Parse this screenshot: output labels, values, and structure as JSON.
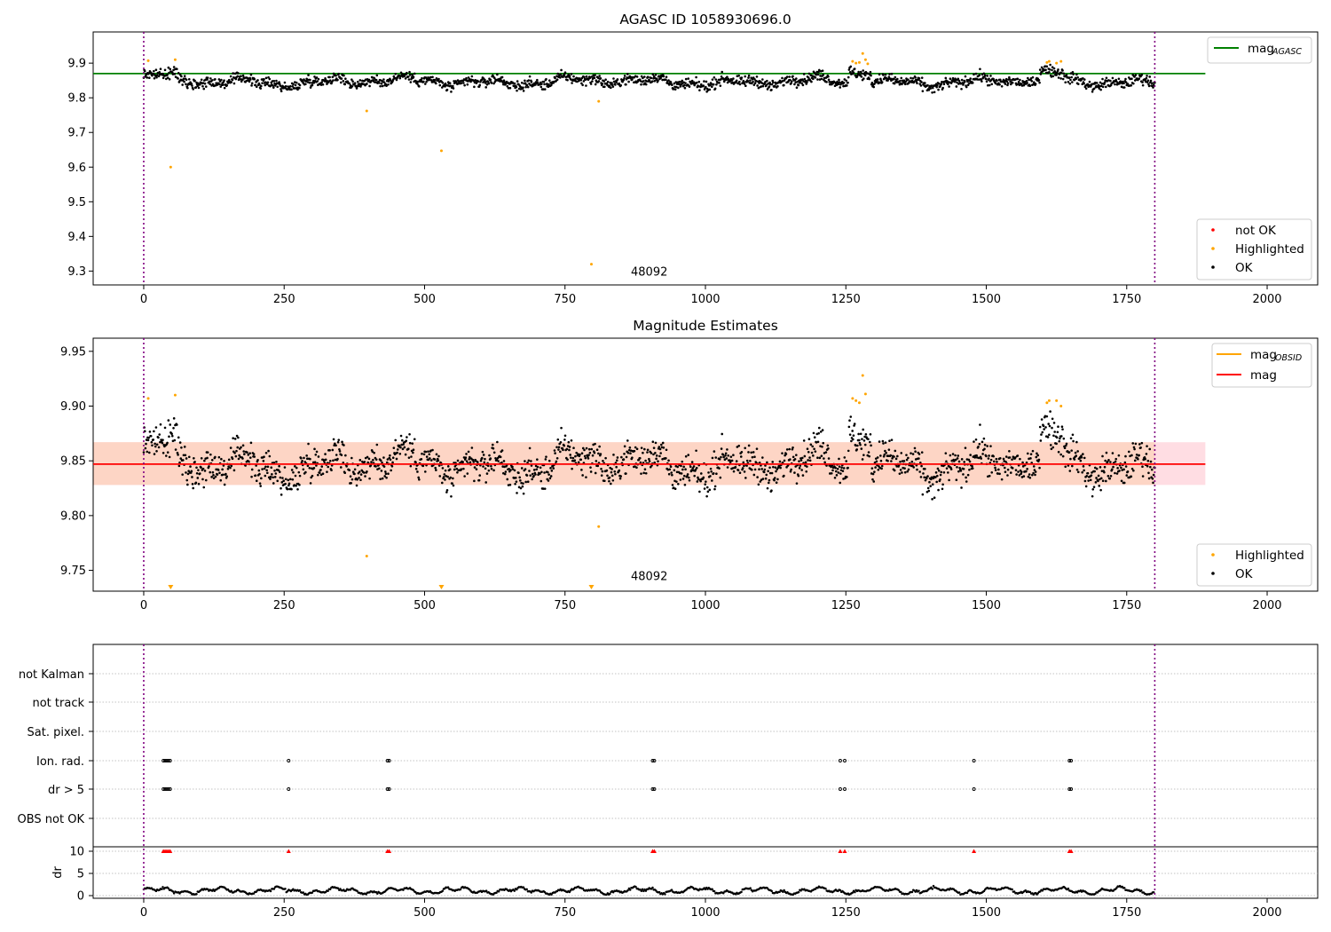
{
  "colors": {
    "ok": "#000000",
    "highlighted": "#ffa500",
    "not_ok": "#ff0000",
    "agasc_line": "#008000",
    "mag_line": "#ff0000",
    "obsid_line": "#ffa500",
    "band_outer": "#ffdde3",
    "band_inner": "#fdd5c5",
    "obs_boundary": "#800080",
    "grid": "#b0b0b0"
  },
  "chart_data": [
    {
      "type": "scatter",
      "title": "AGASC ID 1058930696.0",
      "xlim": [
        -90,
        2090
      ],
      "ylim": [
        9.26,
        9.99
      ],
      "xticks": [
        0,
        250,
        500,
        750,
        1000,
        1250,
        1500,
        1750,
        2000
      ],
      "yticks": [
        9.3,
        9.4,
        9.5,
        9.6,
        9.7,
        9.8,
        9.9
      ],
      "ytick_labels": [
        "9.3",
        "9.4",
        "9.5",
        "9.6",
        "9.7",
        "9.8",
        "9.9"
      ],
      "hlines": [
        {
          "name": "mag",
          "subscript": "AGASC",
          "y": 9.87,
          "x_range": [
            -90,
            1890
          ]
        }
      ],
      "obs_boundaries": [
        0,
        1800
      ],
      "annotations": [
        {
          "text": "48092",
          "x": 900,
          "y": 9.3
        }
      ],
      "legends": [
        {
          "location": "upper right",
          "entries": [
            {
              "label": "mag",
              "subscript": "AGASC",
              "kind": "line",
              "color": "#008000"
            }
          ]
        },
        {
          "location": "lower right",
          "entries": [
            {
              "label": "not OK",
              "kind": "marker",
              "color": "#ff0000"
            },
            {
              "label": "Highlighted",
              "kind": "marker",
              "color": "#ffa500"
            },
            {
              "label": "OK",
              "kind": "marker",
              "color": "#000000"
            }
          ]
        }
      ],
      "ok_series": {
        "name": "OK",
        "x_range": [
          0,
          1800
        ],
        "count": 1800,
        "baseline": 9.847,
        "spread": 0.018
      },
      "bumps": [
        {
          "x_range": [
            1255,
            1295
          ],
          "shift": 0.035
        },
        {
          "x_range": [
            1595,
            1640
          ],
          "shift": 0.025
        },
        {
          "x_range": [
            0,
            60
          ],
          "shift": 0.015
        }
      ],
      "highlighted_points": [
        {
          "x": 8,
          "y": 9.907
        },
        {
          "x": 48,
          "y": 9.6
        },
        {
          "x": 56,
          "y": 9.91
        },
        {
          "x": 397,
          "y": 9.762
        },
        {
          "x": 530,
          "y": 9.647
        },
        {
          "x": 797,
          "y": 9.32
        },
        {
          "x": 810,
          "y": 9.79
        },
        {
          "x": 1262,
          "y": 9.905
        },
        {
          "x": 1268,
          "y": 9.9
        },
        {
          "x": 1274,
          "y": 9.902
        },
        {
          "x": 1280,
          "y": 9.928
        },
        {
          "x": 1285,
          "y": 9.91
        },
        {
          "x": 1289,
          "y": 9.898
        },
        {
          "x": 1608,
          "y": 9.902
        },
        {
          "x": 1612,
          "y": 9.905
        },
        {
          "x": 1625,
          "y": 9.9
        },
        {
          "x": 1633,
          "y": 9.905
        }
      ]
    },
    {
      "type": "scatter",
      "title": "Magnitude Estimates",
      "xlim": [
        -90,
        2090
      ],
      "ylim": [
        9.731,
        9.962
      ],
      "xticks": [
        0,
        250,
        500,
        750,
        1000,
        1250,
        1500,
        1750,
        2000
      ],
      "yticks": [
        9.75,
        9.8,
        9.85,
        9.9,
        9.95
      ],
      "ytick_labels": [
        "9.75",
        "9.80",
        "9.85",
        "9.90",
        "9.95"
      ],
      "hlines": [
        {
          "name": "mag",
          "y": 9.847,
          "x_range": [
            -90,
            1890
          ]
        }
      ],
      "bands": [
        {
          "y_range": [
            9.828,
            9.867
          ],
          "x_range": [
            -90,
            1890
          ],
          "color": "#ffdde3"
        },
        {
          "y_range": [
            9.828,
            9.867
          ],
          "x_range": [
            -90,
            1800
          ],
          "color": "#fdd5c5"
        }
      ],
      "obs_boundaries": [
        0,
        1800
      ],
      "annotations": [
        {
          "text": "48092",
          "x": 900,
          "y": 9.745
        }
      ],
      "legends": [
        {
          "location": "upper right",
          "entries": [
            {
              "label": "mag",
              "subscript": "OBSID",
              "kind": "line",
              "color": "#ffa500"
            },
            {
              "label": "mag",
              "kind": "line",
              "color": "#ff0000"
            }
          ]
        },
        {
          "location": "lower right",
          "entries": [
            {
              "label": "Highlighted",
              "kind": "marker",
              "color": "#ffa500"
            },
            {
              "label": "OK",
              "kind": "marker",
              "color": "#000000"
            }
          ]
        }
      ],
      "ok_series": {
        "name": "OK",
        "x_range": [
          0,
          1800
        ],
        "count": 1800,
        "baseline": 9.847,
        "spread": 0.018
      },
      "highlighted_points": [
        {
          "x": 8,
          "y": 9.907
        },
        {
          "x": 56,
          "y": 9.91
        },
        {
          "x": 397,
          "y": 9.763
        },
        {
          "x": 810,
          "y": 9.79
        },
        {
          "x": 1262,
          "y": 9.907
        },
        {
          "x": 1268,
          "y": 9.905
        },
        {
          "x": 1274,
          "y": 9.903
        },
        {
          "x": 1280,
          "y": 9.928
        },
        {
          "x": 1285,
          "y": 9.911
        },
        {
          "x": 1608,
          "y": 9.903
        },
        {
          "x": 1612,
          "y": 9.905
        },
        {
          "x": 1625,
          "y": 9.905
        },
        {
          "x": 1633,
          "y": 9.9
        }
      ],
      "offscale_markers": [
        {
          "x": 48
        },
        {
          "x": 530
        },
        {
          "x": 797
        }
      ]
    },
    {
      "type": "scatter",
      "xlim": [
        -90,
        2090
      ],
      "flag_rows": [
        "not Kalman",
        "not track",
        "Sat. pixel.",
        "Ion. rad.",
        "dr > 5",
        "OBS not OK"
      ],
      "flag_points": {
        "Ion. rad.": [
          35,
          38,
          41,
          44,
          47,
          258,
          434,
          437,
          906,
          909,
          1240,
          1248,
          1478,
          1648,
          1651
        ],
        "dr > 5": [
          35,
          38,
          41,
          44,
          47,
          258,
          434,
          437,
          906,
          909,
          1240,
          1248,
          1478,
          1648,
          1651
        ]
      },
      "dr_panel": {
        "ylabel": "dr",
        "ylim": [
          -0.6,
          11
        ],
        "yticks": [
          0,
          5,
          10
        ],
        "ytick_labels": [
          "0",
          "5",
          "10"
        ],
        "clipped_value": 10,
        "clipped_x": [
          35,
          38,
          41,
          44,
          47,
          258,
          434,
          437,
          906,
          909,
          1240,
          1248,
          1478,
          1648,
          1651
        ],
        "typical_range": [
          0.2,
          2.6
        ]
      },
      "xticks": [
        0,
        250,
        500,
        750,
        1000,
        1250,
        1500,
        1750,
        2000
      ],
      "obs_boundaries": [
        0,
        1800
      ]
    }
  ]
}
